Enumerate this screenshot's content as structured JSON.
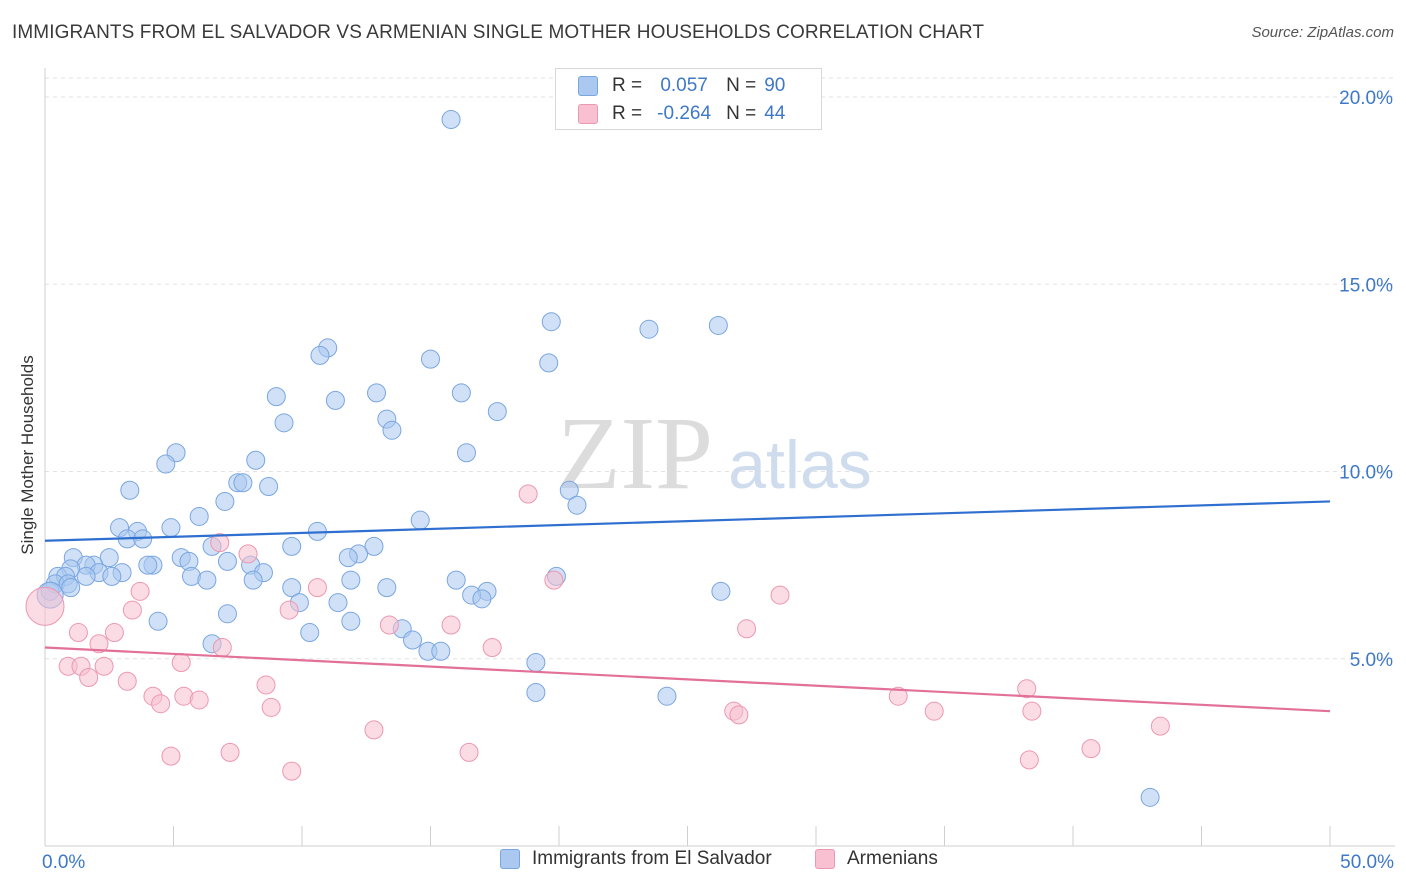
{
  "title": "IMMIGRANTS FROM EL SALVADOR VS ARMENIAN SINGLE MOTHER HOUSEHOLDS CORRELATION CHART",
  "source": "Source: ZipAtlas.com",
  "watermark": {
    "zip": "ZIP",
    "atlas": "atlas"
  },
  "stats": [
    {
      "r_label": "R =",
      "r_value": "0.057",
      "n_label": "N =",
      "n_value": "90",
      "color": "#aac8f0",
      "border": "#7aa6e0"
    },
    {
      "r_label": "R =",
      "r_value": "-0.264",
      "n_label": "N =",
      "n_value": "44",
      "color": "#f8c0d0",
      "border": "#ec98b0"
    }
  ],
  "legend": [
    {
      "label": "Immigrants from El Salvador",
      "color": "#aac8f0",
      "border": "#7aa6e0"
    },
    {
      "label": "Armenians",
      "color": "#f8c0d0",
      "border": "#ec98b0"
    }
  ],
  "chart_data": {
    "type": "scatter",
    "title": "IMMIGRANTS FROM EL SALVADOR VS ARMENIAN SINGLE MOTHER HOUSEHOLDS CORRELATION CHART",
    "xlabel": "",
    "ylabel": "Single Mother Households",
    "xlim": [
      0,
      50
    ],
    "ylim": [
      0,
      20.5
    ],
    "x_tick_labels": [
      {
        "value": 0,
        "label": "0.0%"
      },
      {
        "value": 50,
        "label": "50.0%"
      }
    ],
    "y_tick_labels": [
      {
        "value": 5,
        "label": "5.0%"
      },
      {
        "value": 10,
        "label": "10.0%"
      },
      {
        "value": 15,
        "label": "15.0%"
      },
      {
        "value": 20,
        "label": "20.0%"
      }
    ],
    "grid": true,
    "series": [
      {
        "name": "Immigrants from El Salvador",
        "color": "#aac8f0",
        "border": "#7aa6e0",
        "trend": {
          "x": [
            0,
            50
          ],
          "y": [
            8.15,
            9.2
          ],
          "color": "#2f6fcf"
        },
        "points": [
          [
            15.8,
            19.4
          ],
          [
            19.7,
            14.0
          ],
          [
            23.5,
            13.8
          ],
          [
            26.2,
            13.9
          ],
          [
            11.0,
            13.3
          ],
          [
            10.7,
            13.1
          ],
          [
            15.0,
            13.0
          ],
          [
            19.6,
            12.9
          ],
          [
            12.9,
            12.1
          ],
          [
            16.2,
            12.1
          ],
          [
            9.0,
            12.0
          ],
          [
            11.3,
            11.9
          ],
          [
            17.6,
            11.6
          ],
          [
            13.3,
            11.4
          ],
          [
            9.3,
            11.3
          ],
          [
            13.5,
            11.1
          ],
          [
            5.1,
            10.5
          ],
          [
            16.4,
            10.5
          ],
          [
            8.2,
            10.3
          ],
          [
            4.7,
            10.2
          ],
          [
            7.5,
            9.7
          ],
          [
            7.7,
            9.7
          ],
          [
            8.7,
            9.6
          ],
          [
            3.3,
            9.5
          ],
          [
            20.4,
            9.5
          ],
          [
            7.0,
            9.2
          ],
          [
            20.7,
            9.1
          ],
          [
            6.0,
            8.8
          ],
          [
            14.6,
            8.7
          ],
          [
            2.9,
            8.5
          ],
          [
            4.9,
            8.5
          ],
          [
            3.6,
            8.4
          ],
          [
            10.6,
            8.4
          ],
          [
            3.2,
            8.2
          ],
          [
            3.8,
            8.2
          ],
          [
            6.5,
            8.0
          ],
          [
            9.6,
            8.0
          ],
          [
            12.8,
            8.0
          ],
          [
            12.2,
            7.8
          ],
          [
            11.8,
            7.7
          ],
          [
            2.5,
            7.7
          ],
          [
            1.1,
            7.7
          ],
          [
            5.3,
            7.7
          ],
          [
            5.6,
            7.6
          ],
          [
            7.1,
            7.6
          ],
          [
            4.2,
            7.5
          ],
          [
            8.0,
            7.5
          ],
          [
            1.9,
            7.5
          ],
          [
            4.0,
            7.5
          ],
          [
            1.6,
            7.5
          ],
          [
            1.0,
            7.4
          ],
          [
            8.5,
            7.3
          ],
          [
            2.1,
            7.3
          ],
          [
            3.0,
            7.3
          ],
          [
            0.5,
            7.2
          ],
          [
            0.8,
            7.2
          ],
          [
            1.6,
            7.2
          ],
          [
            2.6,
            7.2
          ],
          [
            5.7,
            7.2
          ],
          [
            6.3,
            7.1
          ],
          [
            8.1,
            7.1
          ],
          [
            11.9,
            7.1
          ],
          [
            16.0,
            7.1
          ],
          [
            19.9,
            7.2
          ],
          [
            0.4,
            7.0
          ],
          [
            0.9,
            7.0
          ],
          [
            1.0,
            6.9
          ],
          [
            9.6,
            6.9
          ],
          [
            13.3,
            6.9
          ],
          [
            0.2,
            6.8
          ],
          [
            17.2,
            6.8
          ],
          [
            26.3,
            6.8
          ],
          [
            16.6,
            6.7
          ],
          [
            17.0,
            6.6
          ],
          [
            9.9,
            6.5
          ],
          [
            11.4,
            6.5
          ],
          [
            7.1,
            6.2
          ],
          [
            4.4,
            6.0
          ],
          [
            11.9,
            6.0
          ],
          [
            13.9,
            5.8
          ],
          [
            10.3,
            5.7
          ],
          [
            14.3,
            5.5
          ],
          [
            6.5,
            5.4
          ],
          [
            14.9,
            5.2
          ],
          [
            15.4,
            5.2
          ],
          [
            19.1,
            4.9
          ],
          [
            19.1,
            4.1
          ],
          [
            24.2,
            4.0
          ],
          [
            43.0,
            1.3
          ],
          [
            0.2,
            6.7
          ]
        ]
      },
      {
        "name": "Armenians",
        "color": "#f8c0d0",
        "border": "#ec98b0",
        "trend": {
          "x": [
            0,
            50
          ],
          "y": [
            5.3,
            3.6
          ],
          "color": "#e27098"
        },
        "points": [
          [
            0.0,
            6.4
          ],
          [
            18.8,
            9.4
          ],
          [
            6.8,
            8.1
          ],
          [
            7.9,
            7.8
          ],
          [
            19.8,
            7.1
          ],
          [
            10.6,
            6.9
          ],
          [
            3.7,
            6.8
          ],
          [
            28.6,
            6.7
          ],
          [
            3.4,
            6.3
          ],
          [
            9.5,
            6.3
          ],
          [
            13.4,
            5.9
          ],
          [
            15.8,
            5.9
          ],
          [
            27.3,
            5.8
          ],
          [
            1.3,
            5.7
          ],
          [
            2.7,
            5.7
          ],
          [
            2.1,
            5.4
          ],
          [
            6.9,
            5.3
          ],
          [
            17.4,
            5.3
          ],
          [
            5.3,
            4.9
          ],
          [
            0.9,
            4.8
          ],
          [
            1.4,
            4.8
          ],
          [
            2.3,
            4.8
          ],
          [
            1.7,
            4.5
          ],
          [
            3.2,
            4.4
          ],
          [
            8.6,
            4.3
          ],
          [
            38.2,
            4.2
          ],
          [
            5.4,
            4.0
          ],
          [
            4.2,
            4.0
          ],
          [
            6.0,
            3.9
          ],
          [
            33.2,
            4.0
          ],
          [
            4.5,
            3.8
          ],
          [
            8.8,
            3.7
          ],
          [
            26.8,
            3.6
          ],
          [
            27.0,
            3.5
          ],
          [
            34.6,
            3.6
          ],
          [
            38.4,
            3.6
          ],
          [
            43.4,
            3.2
          ],
          [
            12.8,
            3.1
          ],
          [
            7.2,
            2.5
          ],
          [
            4.9,
            2.4
          ],
          [
            16.5,
            2.5
          ],
          [
            40.7,
            2.6
          ],
          [
            38.3,
            2.3
          ],
          [
            9.6,
            2.0
          ]
        ]
      }
    ]
  }
}
